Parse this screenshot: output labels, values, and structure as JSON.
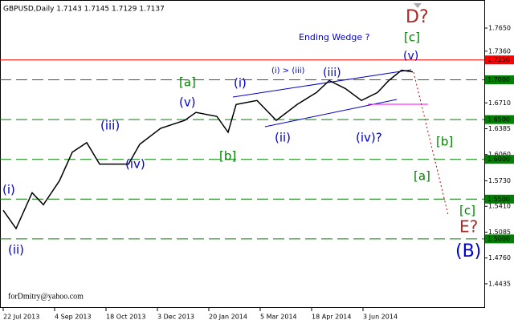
{
  "chart_data": {
    "type": "line",
    "title": "GBPUSD,Daily  1.7143 1.7145 1.7129 1.7137",
    "footer": "forDmitry@yahoo.com",
    "x": [
      0,
      8,
      18,
      25,
      35,
      43,
      52,
      60,
      78,
      85,
      98,
      113,
      120,
      133,
      140,
      145,
      158,
      170,
      183,
      195,
      203,
      213,
      223,
      233,
      240,
      248,
      255
    ],
    "series": [
      {
        "color": "#000000",
        "values": [
          1.536,
          1.513,
          1.558,
          1.543,
          1.573,
          1.609,
          1.621,
          1.594,
          1.594,
          1.619,
          1.639,
          1.649,
          1.659,
          1.654,
          1.634,
          1.669,
          1.674,
          1.649,
          1.669,
          1.684,
          1.699,
          1.689,
          1.674,
          1.684,
          1.699,
          1.712,
          1.71
        ]
      }
    ],
    "xlim": [
      0,
      300
    ],
    "xticks": [
      {
        "value": 0,
        "label": "22 Jul 2013"
      },
      {
        "value": 32,
        "label": "4 Sep 2013"
      },
      {
        "value": 64,
        "label": "18 Oct 2013"
      },
      {
        "value": 96,
        "label": "3 Dec 2013"
      },
      {
        "value": 128,
        "label": "20 Jan 2014"
      },
      {
        "value": 160,
        "label": "5 Mar 2014"
      },
      {
        "value": 192,
        "label": "18 Apr 2014"
      },
      {
        "value": 224,
        "label": "3 Jun 2014"
      }
    ],
    "ylim": [
      1.4132,
      1.8003
    ],
    "yticks": [
      {
        "value": 1.765,
        "label": "1.7650"
      },
      {
        "value": 1.736,
        "label": "1.7360"
      },
      {
        "value": 1.671,
        "label": "1.6710"
      },
      1.6385,
      {
        "value": 1.606,
        "label": "1.6060"
      },
      {
        "value": 1.573,
        "label": "1.5730"
      },
      {
        "value": 1.541,
        "label": "1.5410"
      },
      1.5085,
      {
        "value": 1.476,
        "label": "1.4760"
      },
      1.4435
    ],
    "levels": [
      {
        "value": 1.725,
        "label": "1.7250",
        "color": "#ff0000"
      },
      {
        "value": 1.7,
        "label": "1.7000",
        "color": "#008000"
      },
      {
        "value": 1.65,
        "label": "1.6500",
        "color": "#008000"
      },
      {
        "value": 1.6,
        "label": "1.6000",
        "color": "#008000"
      },
      {
        "value": 1.55,
        "label": "1.5500",
        "color": "#008000"
      },
      {
        "value": 1.5,
        "label": "1.5000",
        "color": "#008000"
      }
    ],
    "annotations": [
      "D?",
      "[c]",
      "Ending Wedge ?",
      "(v)",
      "(i) > (iii)",
      "(iii)",
      "[a]",
      "(i)",
      "(v)",
      "(iii)",
      "(ii)",
      "(iv)?",
      "[b]",
      "[b]",
      "(iv)",
      "[a]",
      "(i)",
      "[c]",
      "E?",
      "(ii)",
      "(B)"
    ]
  }
}
